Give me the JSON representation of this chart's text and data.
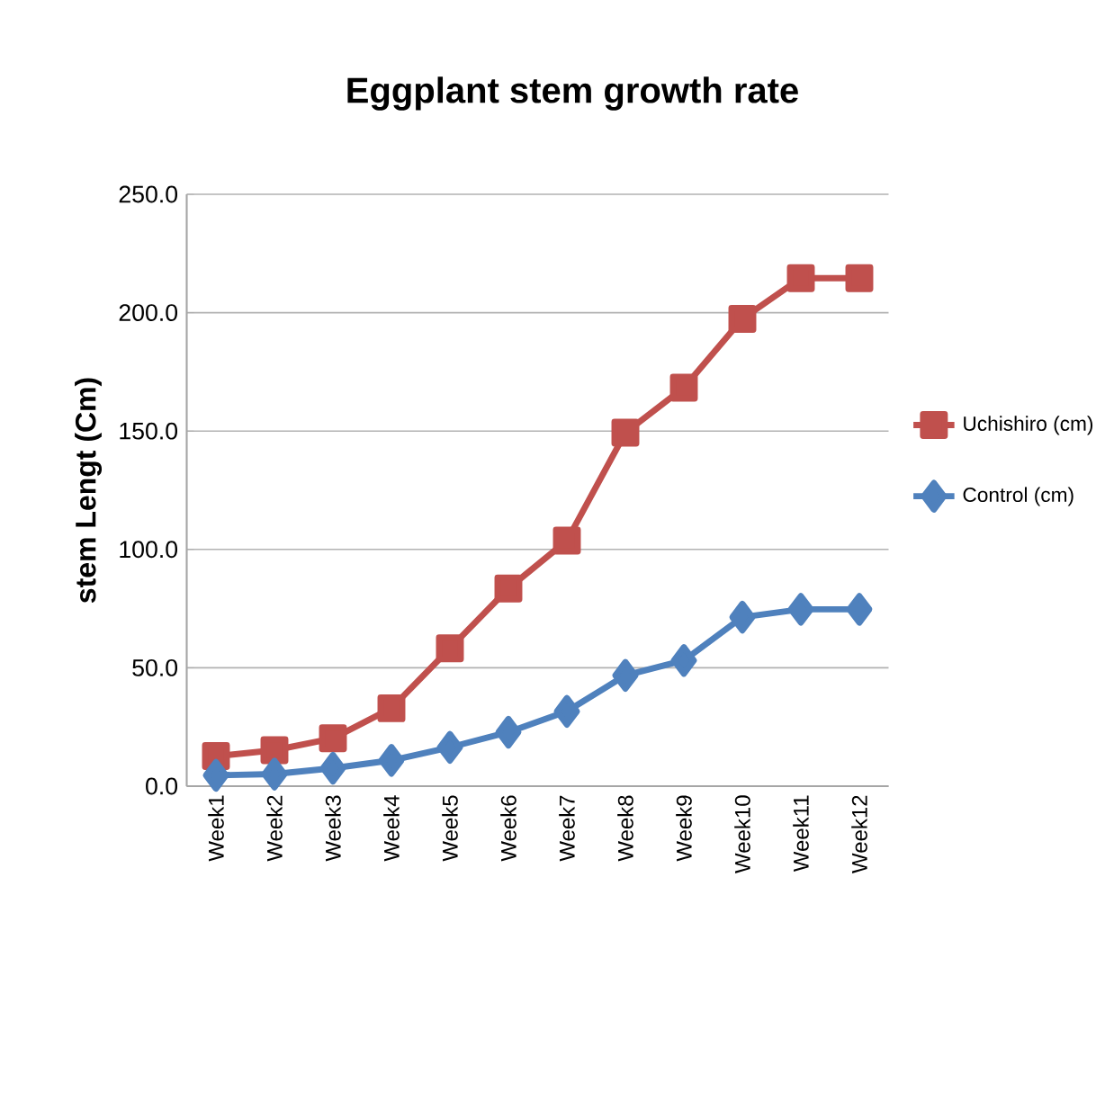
{
  "chart_data": {
    "type": "line",
    "title": "Eggplant stem growth rate",
    "ylabel": "stem Lengt (Cm)",
    "categories": [
      "Week1",
      "Week2",
      "Week3",
      "Week4",
      "Week5",
      "Week6",
      "Week7",
      "Week8",
      "Week9",
      "Week10",
      "Week11",
      "Week12"
    ],
    "series": [
      {
        "name": "Uchishiro (cm)",
        "color": "#c0504d",
        "marker": "square",
        "values": [
          12.7,
          15.2,
          20.2,
          32.9,
          58.2,
          83.5,
          103.7,
          149.3,
          168.3,
          197.4,
          214.6,
          214.6
        ]
      },
      {
        "name": "Control (cm)",
        "color": "#4f81bd",
        "marker": "diamond",
        "values": [
          4.6,
          5.1,
          7.6,
          10.9,
          16.4,
          22.8,
          31.6,
          46.8,
          53.1,
          71.4,
          74.7,
          74.7
        ]
      }
    ],
    "ylim": [
      0,
      250
    ],
    "yticks": [
      {
        "value": 0,
        "label": "0.0"
      },
      {
        "value": 50,
        "label": "50.0"
      },
      {
        "value": 100,
        "label": "100.0"
      },
      {
        "value": 150,
        "label": "150.0"
      },
      {
        "value": 200,
        "label": "200.0"
      },
      {
        "value": 250,
        "label": "250.0"
      }
    ],
    "grid": "y",
    "legend": "right"
  }
}
